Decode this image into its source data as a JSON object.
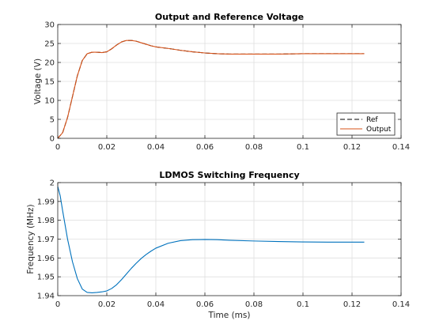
{
  "chart_data": [
    {
      "type": "line",
      "title": "Output and Reference Voltage",
      "xlabel": "",
      "ylabel": "Voltage (V)",
      "xlim": [
        0,
        0.14
      ],
      "ylim": [
        0,
        30
      ],
      "xticks": [
        0,
        0.02,
        0.04,
        0.06,
        0.08,
        0.1,
        0.12,
        0.14
      ],
      "xtick_labels": [
        "0",
        "0.02",
        "0.04",
        "0.06",
        "0.08",
        "0.1",
        "0.12",
        "0.14"
      ],
      "yticks": [
        0,
        5,
        10,
        15,
        20,
        25,
        30
      ],
      "ytick_labels": [
        "0",
        "5",
        "10",
        "15",
        "20",
        "25",
        "30"
      ],
      "grid": true,
      "legend_position": "bottom-right",
      "series": [
        {
          "name": "Ref",
          "color": "#000000",
          "dash": "dashed",
          "x": [
            0,
            0.002,
            0.004,
            0.006,
            0.008,
            0.01,
            0.012,
            0.014,
            0.016,
            0.018,
            0.02,
            0.022,
            0.024,
            0.026,
            0.028,
            0.03,
            0.032,
            0.034,
            0.036,
            0.038,
            0.04,
            0.045,
            0.05,
            0.055,
            0.06,
            0.065,
            0.07,
            0.08,
            0.09,
            0.1,
            0.11,
            0.12,
            0.125
          ],
          "y": [
            0,
            1.5,
            5.5,
            11,
            16.5,
            20.5,
            22.3,
            22.7,
            22.7,
            22.6,
            22.8,
            23.6,
            24.6,
            25.4,
            25.8,
            25.8,
            25.6,
            25.2,
            24.8,
            24.4,
            24.1,
            23.7,
            23.2,
            22.8,
            22.5,
            22.3,
            22.2,
            22.2,
            22.2,
            22.3,
            22.3,
            22.3,
            22.3
          ]
        },
        {
          "name": "Output",
          "color": "#d95319",
          "dash": "solid",
          "x": [
            0,
            0.002,
            0.004,
            0.006,
            0.008,
            0.01,
            0.012,
            0.014,
            0.016,
            0.018,
            0.02,
            0.022,
            0.024,
            0.026,
            0.028,
            0.03,
            0.032,
            0.034,
            0.036,
            0.038,
            0.04,
            0.045,
            0.05,
            0.055,
            0.06,
            0.065,
            0.07,
            0.08,
            0.09,
            0.1,
            0.11,
            0.12,
            0.125
          ],
          "y": [
            0,
            1.5,
            5.5,
            11,
            16.5,
            20.5,
            22.3,
            22.7,
            22.7,
            22.6,
            22.8,
            23.6,
            24.6,
            25.4,
            25.8,
            25.8,
            25.6,
            25.2,
            24.8,
            24.4,
            24.1,
            23.7,
            23.2,
            22.8,
            22.5,
            22.3,
            22.2,
            22.2,
            22.2,
            22.3,
            22.3,
            22.3,
            22.3
          ]
        }
      ]
    },
    {
      "type": "line",
      "title": "LDMOS Switching Frequency",
      "xlabel": "Time (ms)",
      "ylabel": "Frequency (MHz)",
      "xlim": [
        0,
        0.14
      ],
      "ylim": [
        1.94,
        2
      ],
      "xticks": [
        0,
        0.02,
        0.04,
        0.06,
        0.08,
        0.1,
        0.12,
        0.14
      ],
      "xtick_labels": [
        "0",
        "0.02",
        "0.04",
        "0.06",
        "0.08",
        "0.1",
        "0.12",
        "0.14"
      ],
      "yticks": [
        1.94,
        1.95,
        1.96,
        1.97,
        1.98,
        1.99,
        2
      ],
      "ytick_labels": [
        "1.94",
        "1.95",
        "1.96",
        "1.97",
        "1.98",
        "1.99",
        "2"
      ],
      "grid": true,
      "series": [
        {
          "color": "#0072bd",
          "dash": "solid",
          "x": [
            0,
            0.001,
            0.002,
            0.004,
            0.006,
            0.008,
            0.01,
            0.012,
            0.014,
            0.016,
            0.018,
            0.02,
            0.022,
            0.024,
            0.026,
            0.028,
            0.03,
            0.032,
            0.034,
            0.036,
            0.038,
            0.04,
            0.045,
            0.05,
            0.055,
            0.06,
            0.065,
            0.07,
            0.08,
            0.09,
            0.1,
            0.11,
            0.12,
            0.125
          ],
          "y": [
            1.998,
            1.993,
            1.985,
            1.97,
            1.958,
            1.949,
            1.9435,
            1.9417,
            1.9415,
            1.9417,
            1.942,
            1.9425,
            1.9438,
            1.9458,
            1.9485,
            1.9515,
            1.9545,
            1.9572,
            1.9597,
            1.9618,
            1.9636,
            1.9652,
            1.9678,
            1.9692,
            1.9697,
            1.9698,
            1.9697,
            1.9694,
            1.969,
            1.9687,
            1.9685,
            1.9684,
            1.9684,
            1.9684
          ]
        }
      ]
    }
  ]
}
